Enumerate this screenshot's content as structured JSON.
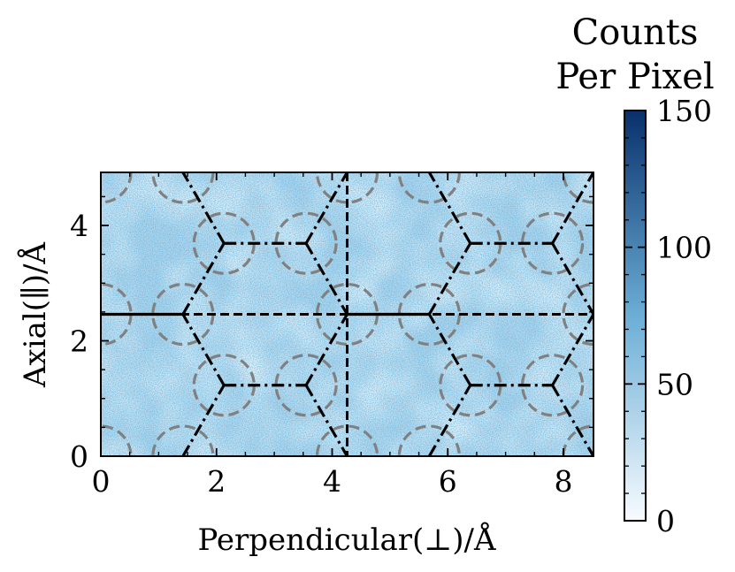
{
  "chart_data": {
    "type": "heatmap",
    "title": "",
    "xlabel": "Perpendicular(⊥)/Å",
    "ylabel": "Axial(∥)/Å",
    "xlim": [
      0,
      8.52
    ],
    "ylim": [
      0,
      4.92
    ],
    "xticks": [
      "0",
      "2",
      "4",
      "6",
      "8"
    ],
    "yticks": [
      "0",
      "2",
      "4"
    ],
    "colormap": "Blues",
    "colorbar": {
      "title_line1": "Counts",
      "title_line2": "Per Pixel",
      "range": [
        0,
        150
      ],
      "ticks": [
        "0",
        "50",
        "100",
        "150"
      ]
    },
    "colors": {
      "low": "#f7fbff",
      "mid": "#6baed6",
      "high": "#08306b",
      "field": "#b5d5ec",
      "lattice_line": "#000000",
      "circle": "#808080"
    },
    "reference_lines": [
      {
        "orientation": "vertical",
        "x": 4.26,
        "style": "dashed"
      },
      {
        "orientation": "horizontal",
        "y": 2.46,
        "style": "dashed"
      }
    ],
    "lattice_sites": [
      {
        "x": 1.42,
        "y": 2.46
      },
      {
        "x": 4.26,
        "y": 2.46
      },
      {
        "x": 5.68,
        "y": 2.46
      },
      {
        "x": 2.13,
        "y": 1.23
      },
      {
        "x": 3.55,
        "y": 1.23
      },
      {
        "x": 6.39,
        "y": 1.23
      },
      {
        "x": 7.81,
        "y": 1.23
      },
      {
        "x": 2.13,
        "y": 3.69
      },
      {
        "x": 3.55,
        "y": 3.69
      },
      {
        "x": 6.39,
        "y": 3.69
      },
      {
        "x": 7.81,
        "y": 3.69
      },
      {
        "x": 1.42,
        "y": 0.0
      },
      {
        "x": 4.26,
        "y": 0.0
      },
      {
        "x": 5.68,
        "y": 0.0
      },
      {
        "x": 1.42,
        "y": 4.92
      },
      {
        "x": 4.26,
        "y": 4.92
      },
      {
        "x": 5.68,
        "y": 4.92
      },
      {
        "x": 0.0,
        "y": 2.46
      },
      {
        "x": 8.52,
        "y": 2.46
      },
      {
        "x": 0.0,
        "y": 4.92
      },
      {
        "x": 0.0,
        "y": 0.0
      },
      {
        "x": 8.52,
        "y": 4.92
      },
      {
        "x": 8.52,
        "y": 0.0
      }
    ],
    "lattice_bonds": [
      {
        "from": [
          1.42,
          0.0
        ],
        "to": [
          2.13,
          1.23
        ],
        "style": "dashdot"
      },
      {
        "from": [
          2.13,
          1.23
        ],
        "to": [
          3.55,
          1.23
        ],
        "style": "dashdot"
      },
      {
        "from": [
          3.55,
          1.23
        ],
        "to": [
          4.26,
          0.0
        ],
        "style": "dashdot"
      },
      {
        "from": [
          2.13,
          1.23
        ],
        "to": [
          1.42,
          2.46
        ],
        "style": "dashdot"
      },
      {
        "from": [
          3.55,
          1.23
        ],
        "to": [
          4.26,
          2.46
        ],
        "style": "dashdot"
      },
      {
        "from": [
          0.0,
          2.46
        ],
        "to": [
          1.42,
          2.46
        ],
        "style": "solid"
      },
      {
        "from": [
          4.26,
          2.46
        ],
        "to": [
          5.68,
          2.46
        ],
        "style": "solid"
      },
      {
        "from": [
          1.42,
          2.46
        ],
        "to": [
          2.13,
          3.69
        ],
        "style": "dashdot"
      },
      {
        "from": [
          2.13,
          3.69
        ],
        "to": [
          3.55,
          3.69
        ],
        "style": "dashdot"
      },
      {
        "from": [
          3.55,
          3.69
        ],
        "to": [
          4.26,
          2.46
        ],
        "style": "dashdot"
      },
      {
        "from": [
          2.13,
          3.69
        ],
        "to": [
          1.42,
          4.92
        ],
        "style": "dashdot"
      },
      {
        "from": [
          3.55,
          3.69
        ],
        "to": [
          4.26,
          4.92
        ],
        "style": "dashdot"
      },
      {
        "from": [
          5.68,
          0.0
        ],
        "to": [
          6.39,
          1.23
        ],
        "style": "dashdot"
      },
      {
        "from": [
          6.39,
          1.23
        ],
        "to": [
          7.81,
          1.23
        ],
        "style": "dashdot"
      },
      {
        "from": [
          7.81,
          1.23
        ],
        "to": [
          8.52,
          0.0
        ],
        "style": "dashdot"
      },
      {
        "from": [
          6.39,
          1.23
        ],
        "to": [
          5.68,
          2.46
        ],
        "style": "dashdot"
      },
      {
        "from": [
          7.81,
          1.23
        ],
        "to": [
          8.52,
          2.46
        ],
        "style": "dashdot"
      },
      {
        "from": [
          5.68,
          2.46
        ],
        "to": [
          6.39,
          3.69
        ],
        "style": "dashdot"
      },
      {
        "from": [
          6.39,
          3.69
        ],
        "to": [
          7.81,
          3.69
        ],
        "style": "dashdot"
      },
      {
        "from": [
          7.81,
          3.69
        ],
        "to": [
          8.52,
          2.46
        ],
        "style": "dashdot"
      },
      {
        "from": [
          6.39,
          3.69
        ],
        "to": [
          5.68,
          4.92
        ],
        "style": "dashdot"
      },
      {
        "from": [
          7.81,
          3.69
        ],
        "to": [
          8.52,
          4.92
        ],
        "style": "dashdot"
      }
    ],
    "site_circle_radius": 0.52,
    "grid": false,
    "legend": "none"
  }
}
